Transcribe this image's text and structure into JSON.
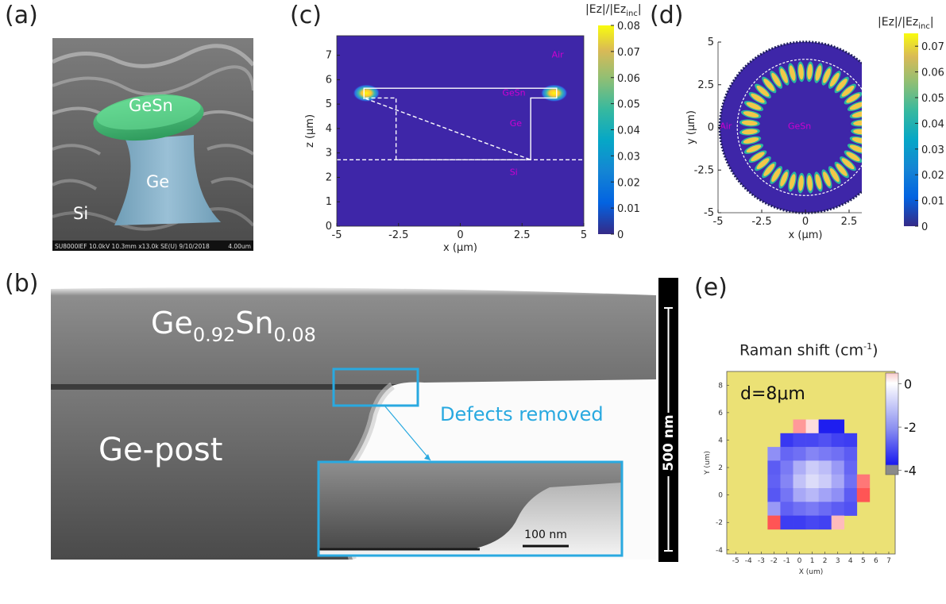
{
  "panels": {
    "a": {
      "label": "(a)",
      "material_labels": {
        "gesn": "GeSn",
        "ge": "Ge",
        "si": "Si"
      },
      "info_bar": {
        "left": "SU8000IEF 10.0kV 10.3mm x13.0k SE(U) 9/10/2018",
        "right": "4.00um"
      }
    },
    "b": {
      "label": "(b)",
      "layer_label": {
        "base": "Ge",
        "sub1": "0.92",
        "mid": "Sn",
        "sub2": "0.08"
      },
      "post_label": "Ge-post",
      "annotation": "Defects removed",
      "scale_bar": "500 nm",
      "inset_scale_bar": "100 nm",
      "colors": {
        "annotation": "#29a9e0"
      }
    },
    "c": {
      "label": "(c)",
      "colorbar_title": {
        "base": "|Ez|/|Ez",
        "sub": "inc",
        "end": "|"
      },
      "colorbar_ticks": [
        "0.08",
        "0.07",
        "0.06",
        "0.05",
        "0.04",
        "0.03",
        "0.02",
        "0.01",
        "0"
      ],
      "region_labels": {
        "air": "Air",
        "gesn": "GeSn",
        "ge": "Ge",
        "si": "Si"
      }
    },
    "d": {
      "label": "(d)",
      "colorbar_title": {
        "base": "|Ez|/|Ez",
        "sub": "inc",
        "end": "|"
      },
      "colorbar_ticks": [
        "0.07",
        "0.06",
        "0.05",
        "0.04",
        "0.03",
        "0.02",
        "0.01",
        "0"
      ],
      "region_labels": {
        "air": "Air",
        "gesn": "GeSn"
      }
    },
    "e": {
      "label": "(e)",
      "title": {
        "base": "Raman shift (cm",
        "sup": "-1",
        "end": ")"
      },
      "annotation": "d=8μm",
      "colorbar_ticks": [
        "0",
        "-2",
        "-4"
      ]
    }
  },
  "chart_data": [
    {
      "type": "heatmap",
      "panel": "c",
      "xlabel": "x (μm)",
      "ylabel": "z (μm)",
      "xlim": [
        -5,
        5
      ],
      "ylim": [
        0,
        7.8
      ],
      "x_ticks": [
        -5,
        -2.5,
        0,
        2.5,
        5
      ],
      "y_ticks": [
        0,
        1,
        2,
        3,
        4,
        5,
        6,
        7
      ],
      "colorbar_range": [
        0,
        0.08
      ],
      "colormap": "parula",
      "hotspots": [
        {
          "x": -3.8,
          "z": 5.45,
          "value": 0.08
        },
        {
          "x": 3.8,
          "z": 5.45,
          "value": 0.08
        }
      ]
    },
    {
      "type": "heatmap",
      "panel": "d",
      "xlabel": "x (μm)",
      "ylabel": "y (μm)",
      "xlim": [
        -5,
        5
      ],
      "ylim": [
        -5,
        5
      ],
      "x_ticks": [
        -5,
        -2.5,
        0,
        2.5,
        5
      ],
      "y_ticks": [
        5,
        2.5,
        0,
        -2.5,
        -5
      ],
      "colorbar_range": [
        0,
        0.075
      ],
      "colormap": "parula",
      "ring_lobes": 40,
      "ring_radius_um": 3.2,
      "disk_radius_um": 3.9,
      "domain_radius_um": 4.9
    },
    {
      "type": "heatmap",
      "panel": "e",
      "xlabel": "X (um)",
      "ylabel": "Y (um)",
      "x_ticks": [
        -5,
        -4,
        -3,
        -2,
        -1,
        0,
        1,
        2,
        3,
        4,
        5,
        6,
        7
      ],
      "y_ticks": [
        -4,
        -2,
        0,
        2,
        4,
        6,
        8
      ],
      "colorbar_range": [
        -4.2,
        0.5
      ],
      "background_color": "#ebe175",
      "grid_x": [
        -2,
        -1,
        0,
        1,
        2,
        3,
        4,
        5
      ],
      "grid_y": [
        5,
        4,
        3,
        2,
        1,
        0,
        -1,
        -2
      ],
      "values": [
        [
          null,
          null,
          0.3,
          0.1,
          -4.0,
          -4.0,
          null,
          null
        ],
        [
          null,
          -3.5,
          -3.2,
          -3.2,
          -3.0,
          -3.3,
          -3.4,
          null
        ],
        [
          -1.8,
          -2.6,
          -2.4,
          -2.0,
          -2.2,
          -2.4,
          -2.8,
          null
        ],
        [
          -2.8,
          -2.2,
          -1.2,
          -0.6,
          -0.9,
          -1.6,
          -2.6,
          null
        ],
        [
          -2.7,
          -2.0,
          -0.8,
          -0.3,
          -0.6,
          -1.3,
          -2.4,
          0.4
        ],
        [
          -2.9,
          -2.3,
          -1.3,
          -1.0,
          -1.4,
          -1.8,
          -2.8,
          0.7
        ],
        [
          -1.6,
          -2.7,
          -2.4,
          -2.2,
          -2.5,
          -2.8,
          -3.0,
          null
        ],
        [
          0.9,
          -3.4,
          -3.4,
          -3.2,
          -3.3,
          0.2,
          null,
          null
        ]
      ]
    }
  ]
}
